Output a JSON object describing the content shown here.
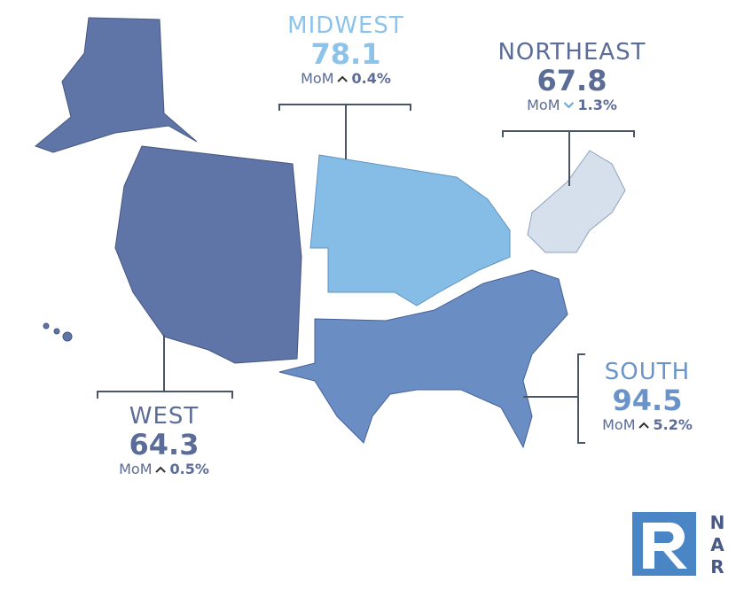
{
  "regions": [
    {
      "name": "MIDWEST",
      "value": 78.1,
      "mom_label": "MoM",
      "direction": "up",
      "change": "0.4%",
      "color": "#86bde6",
      "text_color": "#8cc3ea"
    },
    {
      "name": "NORTHEAST",
      "value": 67.8,
      "mom_label": "MoM",
      "direction": "down",
      "change": "1.3%",
      "color": "#d5e0ec",
      "text_color": "#5b6c96"
    },
    {
      "name": "WEST",
      "value": 64.3,
      "mom_label": "MoM",
      "direction": "up",
      "change": "0.5%",
      "color": "#5f75a8",
      "text_color": "#5b6c96"
    },
    {
      "name": "SOUTH",
      "value": 94.5,
      "mom_label": "MoM",
      "direction": "up",
      "change": "5.2%",
      "color": "#6a8ec3",
      "text_color": "#6a94c9"
    }
  ],
  "logo": {
    "letters": [
      "N",
      "A",
      "R"
    ]
  }
}
